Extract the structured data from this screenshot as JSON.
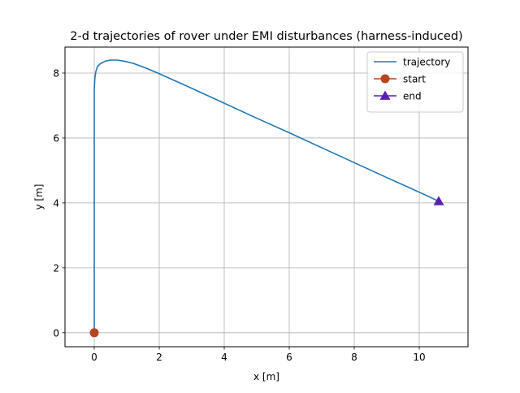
{
  "chart_data": {
    "type": "line",
    "title": "2-d trajectories of rover under EMI disturbances (harness-induced)",
    "xlabel": "x [m]",
    "ylabel": "y [m]",
    "xlim": [
      -0.9,
      11.5
    ],
    "ylim": [
      -0.43,
      8.8
    ],
    "xticks": [
      0,
      2,
      4,
      6,
      8,
      10
    ],
    "yticks": [
      0,
      2,
      4,
      6,
      8
    ],
    "grid": true,
    "legend_position": "upper-right",
    "series": [
      {
        "name": "trajectory",
        "color": "#1f77b4",
        "x": [
          0.0,
          0.0,
          0.0,
          0.0,
          0.0,
          0.0,
          0.02,
          0.05,
          0.1,
          0.2,
          0.35,
          0.5,
          0.7,
          0.9,
          1.2,
          1.6,
          2.0,
          3.0,
          4.0,
          5.0,
          6.0,
          7.0,
          8.0,
          9.0,
          10.0,
          10.6
        ],
        "y": [
          0.0,
          1.0,
          2.0,
          4.0,
          6.0,
          7.5,
          7.85,
          8.05,
          8.2,
          8.3,
          8.37,
          8.4,
          8.4,
          8.37,
          8.3,
          8.15,
          7.98,
          7.53,
          7.07,
          6.61,
          6.16,
          5.7,
          5.24,
          4.78,
          4.33,
          4.05
        ]
      },
      {
        "name": "start",
        "color": "#b5441f",
        "marker": "circle",
        "x": [
          0.0
        ],
        "y": [
          0.0
        ]
      },
      {
        "name": "end",
        "color": "#5b1fb0",
        "marker": "triangle-up",
        "x": [
          10.6
        ],
        "y": [
          4.05
        ]
      }
    ]
  }
}
